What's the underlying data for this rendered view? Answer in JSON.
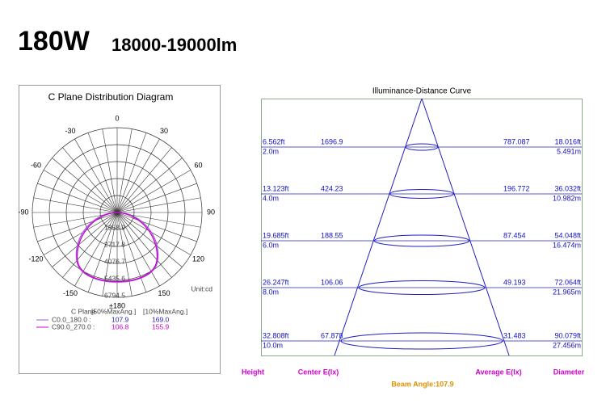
{
  "header": {
    "power": "180W",
    "flux": "18000-19000lm"
  },
  "polar": {
    "title": "C Plane Distribution Diagram",
    "angles": [
      "±180",
      "150",
      "120",
      "90",
      "60",
      "30",
      "0",
      "-30",
      "-60",
      "-90",
      "-120",
      "-150"
    ],
    "rings": [
      "1358.9",
      "2717.8",
      "4076.7",
      "5435.6",
      "6794.5"
    ],
    "unit": "Unit:cd",
    "legend": {
      "header": [
        "C Plane",
        "[50%MaxAng.]",
        "[10%MaxAng.]"
      ],
      "rows": [
        [
          "C0.0_180.0 :",
          "107.9",
          "169.0"
        ],
        [
          "C90.0_270.0 :",
          "106.8",
          "155.9"
        ]
      ]
    }
  },
  "illuminance": {
    "title": "Illuminance-Distance Curve",
    "rows": [
      [
        "6.562ft",
        "2.0m",
        "1696.9",
        "787.087",
        "18.016ft",
        "5.491m"
      ],
      [
        "13.123ft",
        "4.0m",
        "424.23",
        "196.772",
        "36.032ft",
        "10.982m"
      ],
      [
        "19.685ft",
        "6.0m",
        "188.55",
        "87.454",
        "54.048ft",
        "16.474m"
      ],
      [
        "26.247ft",
        "8.0m",
        "106.06",
        "49.193",
        "72.064ft",
        "21.965m"
      ],
      [
        "32.808ft",
        "10.0m",
        "67.878",
        "31.483",
        "90.079ft",
        "27.456m"
      ]
    ],
    "footer": [
      "Height",
      "Center E(lx)",
      "Average E(lx)",
      "Diameter"
    ],
    "beam_angle": "Beam Angle:107.9"
  }
}
